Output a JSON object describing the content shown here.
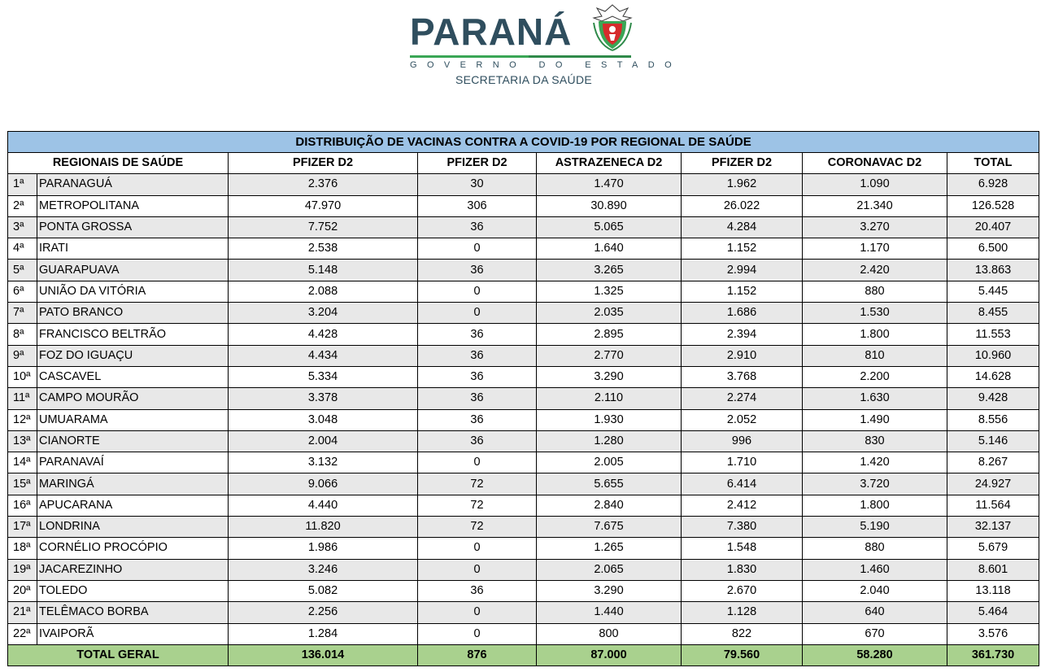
{
  "header": {
    "logo_title": "PARANÁ",
    "logo_subtitle": "GOVERNO DO ESTADO",
    "logo_department": "SECRETARIA DA SAÚDE",
    "brand_color": "#2f4e5e",
    "accent_color": "#3aa655",
    "crest_icon": "parana-coat-of-arms-icon"
  },
  "table": {
    "title": "DISTRIBUIÇÃO DE VACINAS CONTRA A COVID-19 POR REGIONAL DE SAÚDE",
    "title_bg": "#9dc3e6",
    "total_bg": "#a9d18e",
    "columns": [
      "REGIONAIS DE SAÚDE",
      "PFIZER D2",
      "PFIZER D2",
      "ASTRAZENECA D2",
      "PFIZER D2",
      "CORONAVAC D2",
      "TOTAL"
    ],
    "rows": [
      {
        "ord": "1ª",
        "name": "PARANAGUÁ",
        "v": [
          "2.376",
          "30",
          "1.470",
          "1.962",
          "1.090",
          "6.928"
        ]
      },
      {
        "ord": "2ª",
        "name": "METROPOLITANA",
        "v": [
          "47.970",
          "306",
          "30.890",
          "26.022",
          "21.340",
          "126.528"
        ]
      },
      {
        "ord": "3ª",
        "name": "PONTA GROSSA",
        "v": [
          "7.752",
          "36",
          "5.065",
          "4.284",
          "3.270",
          "20.407"
        ]
      },
      {
        "ord": "4ª",
        "name": "IRATI",
        "v": [
          "2.538",
          "0",
          "1.640",
          "1.152",
          "1.170",
          "6.500"
        ]
      },
      {
        "ord": "5ª",
        "name": "GUARAPUAVA",
        "v": [
          "5.148",
          "36",
          "3.265",
          "2.994",
          "2.420",
          "13.863"
        ]
      },
      {
        "ord": "6ª",
        "name": "UNIÃO DA VITÓRIA",
        "v": [
          "2.088",
          "0",
          "1.325",
          "1.152",
          "880",
          "5.445"
        ]
      },
      {
        "ord": "7ª",
        "name": "PATO BRANCO",
        "v": [
          "3.204",
          "0",
          "2.035",
          "1.686",
          "1.530",
          "8.455"
        ]
      },
      {
        "ord": "8ª",
        "name": "FRANCISCO BELTRÃO",
        "v": [
          "4.428",
          "36",
          "2.895",
          "2.394",
          "1.800",
          "11.553"
        ]
      },
      {
        "ord": "9ª",
        "name": "FOZ DO IGUAÇU",
        "v": [
          "4.434",
          "36",
          "2.770",
          "2.910",
          "810",
          "10.960"
        ]
      },
      {
        "ord": "10ª",
        "name": "CASCAVEL",
        "v": [
          "5.334",
          "36",
          "3.290",
          "3.768",
          "2.200",
          "14.628"
        ]
      },
      {
        "ord": "11ª",
        "name": "CAMPO MOURÃO",
        "v": [
          "3.378",
          "36",
          "2.110",
          "2.274",
          "1.630",
          "9.428"
        ]
      },
      {
        "ord": "12ª",
        "name": "UMUARAMA",
        "v": [
          "3.048",
          "36",
          "1.930",
          "2.052",
          "1.490",
          "8.556"
        ]
      },
      {
        "ord": "13ª",
        "name": "CIANORTE",
        "v": [
          "2.004",
          "36",
          "1.280",
          "996",
          "830",
          "5.146"
        ]
      },
      {
        "ord": "14ª",
        "name": "PARANAVAÍ",
        "v": [
          "3.132",
          "0",
          "2.005",
          "1.710",
          "1.420",
          "8.267"
        ]
      },
      {
        "ord": "15ª",
        "name": "MARINGÁ",
        "v": [
          "9.066",
          "72",
          "5.655",
          "6.414",
          "3.720",
          "24.927"
        ]
      },
      {
        "ord": "16ª",
        "name": "APUCARANA",
        "v": [
          "4.440",
          "72",
          "2.840",
          "2.412",
          "1.800",
          "11.564"
        ]
      },
      {
        "ord": "17ª",
        "name": "LONDRINA",
        "v": [
          "11.820",
          "72",
          "7.675",
          "7.380",
          "5.190",
          "32.137"
        ]
      },
      {
        "ord": "18ª",
        "name": "CORNÉLIO PROCÓPIO",
        "v": [
          "1.986",
          "0",
          "1.265",
          "1.548",
          "880",
          "5.679"
        ]
      },
      {
        "ord": "19ª",
        "name": "JACAREZINHO",
        "v": [
          "3.246",
          "0",
          "2.065",
          "1.830",
          "1.460",
          "8.601"
        ]
      },
      {
        "ord": "20ª",
        "name": "TOLEDO",
        "v": [
          "5.082",
          "36",
          "3.290",
          "2.670",
          "2.040",
          "13.118"
        ]
      },
      {
        "ord": "21ª",
        "name": "TELÊMACO BORBA",
        "v": [
          "2.256",
          "0",
          "1.440",
          "1.128",
          "640",
          "5.464"
        ]
      },
      {
        "ord": "22ª",
        "name": "IVAIPORÃ",
        "v": [
          "1.284",
          "0",
          "800",
          "822",
          "670",
          "3.576"
        ]
      }
    ],
    "total": {
      "label": "TOTAL GERAL",
      "v": [
        "136.014",
        "876",
        "87.000",
        "79.560",
        "58.280",
        "361.730"
      ]
    }
  }
}
